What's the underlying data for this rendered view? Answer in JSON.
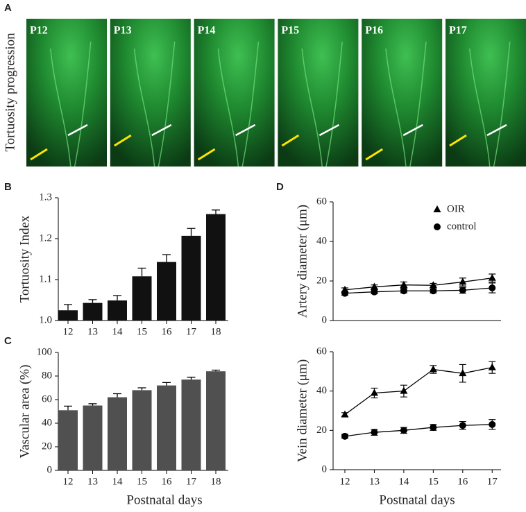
{
  "figure_a": {
    "label": "A",
    "ylabel": "Tortuosity progression",
    "images": [
      "P12",
      "P13",
      "P14",
      "P15",
      "P16",
      "P17"
    ]
  },
  "chart_data": [
    {
      "type": "bar",
      "panel": "B",
      "ylabel": "Tortuosity Index",
      "categories": [
        "12",
        "13",
        "14",
        "15",
        "16",
        "17",
        "18"
      ],
      "values": [
        1.025,
        1.043,
        1.049,
        1.108,
        1.143,
        1.207,
        1.26
      ],
      "errors": [
        0.014,
        0.008,
        0.012,
        0.02,
        0.018,
        0.018,
        0.01
      ],
      "color": "#111111",
      "ylim": [
        1.0,
        1.3
      ],
      "yticks": [
        {
          "value": 1.0,
          "label": "1.0"
        },
        1.1,
        1.2,
        1.3
      ]
    },
    {
      "type": "bar",
      "panel": "C",
      "ylabel": "Vascular area (%)",
      "xlabel": "Postnatal days",
      "categories": [
        "12",
        "13",
        "14",
        "15",
        "16",
        "17",
        "18"
      ],
      "values": [
        51,
        55,
        62,
        68,
        72,
        77,
        84
      ],
      "errors": [
        3.5,
        1.5,
        3,
        2,
        2.5,
        2,
        1
      ],
      "color": "#505050",
      "ylim": [
        0,
        100
      ],
      "yticks": [
        0,
        20,
        40,
        60,
        80,
        100
      ]
    },
    {
      "type": "line",
      "panel": "D",
      "ylabel": "Artery diameter (μm)",
      "x": [
        12,
        13,
        14,
        15,
        16,
        17
      ],
      "xlim": [
        11.6,
        17.3
      ],
      "ylim": [
        0,
        60
      ],
      "yticks": [
        0,
        20,
        40,
        60
      ],
      "legend": "top-right",
      "series": [
        {
          "name": "OIR",
          "marker": "triangle",
          "color": "#000000",
          "values": [
            15.5,
            17,
            18,
            17.8,
            19.5,
            21.5
          ],
          "errors": [
            1,
            1,
            1.5,
            1,
            2,
            2
          ]
        },
        {
          "name": "control",
          "marker": "circle",
          "color": "#000000",
          "values": [
            13.8,
            14.5,
            15,
            15,
            15.3,
            16.5
          ],
          "errors": [
            1,
            1,
            1,
            1,
            1.5,
            2.5
          ]
        }
      ]
    },
    {
      "type": "line",
      "ylabel": "Vein diameter (μm)",
      "xlabel": "Postnatal days",
      "x": [
        12,
        13,
        14,
        15,
        16,
        17
      ],
      "xlim": [
        11.6,
        17.3
      ],
      "xticks": [
        12,
        13,
        14,
        15,
        16,
        17
      ],
      "ylim": [
        0,
        60
      ],
      "yticks": [
        0,
        20,
        40,
        60
      ],
      "series": [
        {
          "marker": "triangle",
          "color": "#000000",
          "values": [
            28,
            39,
            40,
            51,
            49,
            52
          ],
          "errors": [
            1,
            2.5,
            3,
            2,
            4.5,
            3
          ]
        },
        {
          "marker": "circle",
          "color": "#000000",
          "values": [
            17,
            19,
            20,
            21.5,
            22.5,
            23
          ],
          "errors": [
            1,
            1.5,
            1.5,
            1.5,
            2,
            2.5
          ]
        }
      ]
    }
  ]
}
